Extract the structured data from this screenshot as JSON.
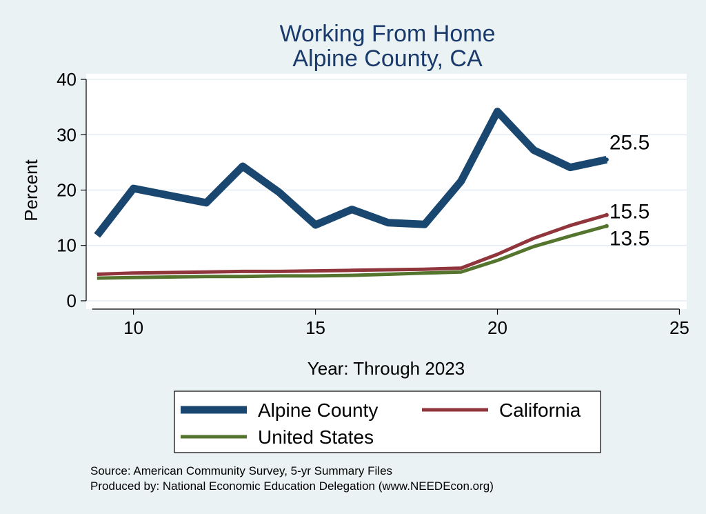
{
  "chart_data": {
    "type": "line",
    "title": [
      "Working From Home",
      "Alpine County, CA"
    ],
    "xlabel": "Year: Through 2023",
    "ylabel": "Percent",
    "xlim": [
      8.7,
      25.2
    ],
    "ylim": [
      -1.5,
      41
    ],
    "xticks": [
      10,
      15,
      20,
      25
    ],
    "yticks": [
      0,
      10,
      20,
      30,
      40
    ],
    "grid": true,
    "legend_position": "bottom",
    "x": [
      9,
      10,
      11,
      12,
      13,
      14,
      15,
      16,
      17,
      18,
      19,
      20,
      21,
      22,
      23
    ],
    "series": [
      {
        "name": "Alpine County",
        "color": "#1a476f",
        "values": [
          11.8,
          20.3,
          19.0,
          17.7,
          24.3,
          19.6,
          13.7,
          16.5,
          14.1,
          13.8,
          21.6,
          34.2,
          27.2,
          24.1,
          25.5
        ],
        "end_label": "25.5"
      },
      {
        "name": "California",
        "color": "#90353b",
        "values": [
          4.8,
          5.0,
          5.1,
          5.2,
          5.3,
          5.3,
          5.4,
          5.5,
          5.6,
          5.7,
          5.9,
          8.4,
          11.3,
          13.6,
          15.5
        ],
        "end_label": "15.5"
      },
      {
        "name": "United States",
        "color": "#55752f",
        "values": [
          4.1,
          4.2,
          4.3,
          4.4,
          4.4,
          4.5,
          4.5,
          4.6,
          4.8,
          5.0,
          5.2,
          7.3,
          9.8,
          11.7,
          13.5
        ],
        "end_label": "13.5"
      }
    ]
  },
  "notes": [
    "Source: American Community Survey, 5-yr Summary Files",
    "Produced by: National Economic Education Delegation (www.NEEDEcon.org)"
  ]
}
